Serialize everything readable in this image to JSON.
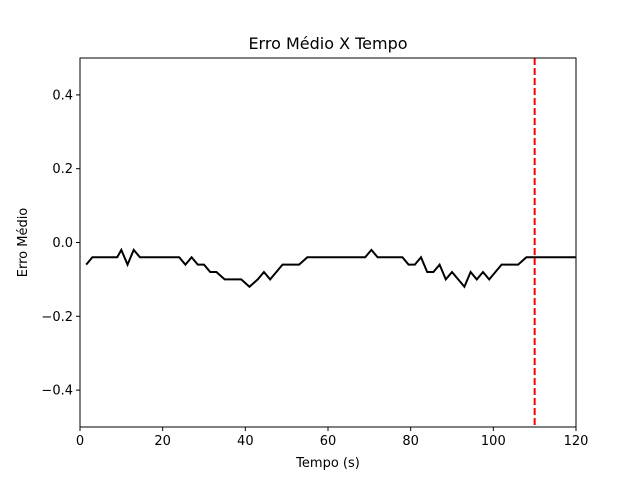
{
  "chart_data": {
    "type": "line",
    "title": "Erro Médio X Tempo",
    "xlabel": "Tempo (s)",
    "ylabel": "Erro Médio",
    "xlim": [
      0,
      120
    ],
    "ylim": [
      -0.5,
      0.5
    ],
    "xticks": [
      0,
      20,
      40,
      60,
      80,
      100,
      120
    ],
    "xtick_labels": [
      "0",
      "20",
      "40",
      "60",
      "80",
      "100",
      "120"
    ],
    "yticks": [
      -0.4,
      -0.2,
      0.0,
      0.2,
      0.4
    ],
    "ytick_labels": [
      "−0.4",
      "−0.2",
      "0.0",
      "0.2",
      "0.4"
    ],
    "grid": false,
    "series": [
      {
        "color": "#000000",
        "style": "solid",
        "x": [
          1.5,
          3,
          5,
          9,
          10,
          11.5,
          13,
          14.5,
          18,
          20,
          22,
          24,
          25.5,
          27,
          28.5,
          30,
          31.5,
          33,
          35,
          37,
          39,
          41,
          43,
          44.5,
          46,
          47.5,
          49,
          51,
          53,
          55,
          57,
          59,
          61,
          63,
          65,
          67,
          69,
          70.5,
          72,
          74,
          76,
          78,
          79.5,
          81,
          82.5,
          84,
          85.5,
          87,
          88.5,
          90,
          91.5,
          93,
          94.5,
          96,
          97.5,
          99,
          100.5,
          102,
          104,
          106,
          108,
          110,
          112,
          114,
          116,
          118,
          120
        ],
        "y": [
          -0.06,
          -0.04,
          -0.04,
          -0.04,
          -0.02,
          -0.06,
          -0.02,
          -0.04,
          -0.04,
          -0.04,
          -0.04,
          -0.04,
          -0.06,
          -0.04,
          -0.06,
          -0.06,
          -0.08,
          -0.08,
          -0.1,
          -0.1,
          -0.1,
          -0.12,
          -0.1,
          -0.08,
          -0.1,
          -0.08,
          -0.06,
          -0.06,
          -0.06,
          -0.04,
          -0.04,
          -0.04,
          -0.04,
          -0.04,
          -0.04,
          -0.04,
          -0.04,
          -0.02,
          -0.04,
          -0.04,
          -0.04,
          -0.04,
          -0.06,
          -0.06,
          -0.04,
          -0.08,
          -0.08,
          -0.06,
          -0.1,
          -0.08,
          -0.1,
          -0.12,
          -0.08,
          -0.1,
          -0.08,
          -0.1,
          -0.08,
          -0.06,
          -0.06,
          -0.06,
          -0.04,
          -0.04,
          -0.04,
          -0.04,
          -0.04,
          -0.04,
          -0.04
        ]
      }
    ],
    "vline": {
      "x": 110,
      "color": "#ff0000",
      "style": "dashed"
    }
  }
}
